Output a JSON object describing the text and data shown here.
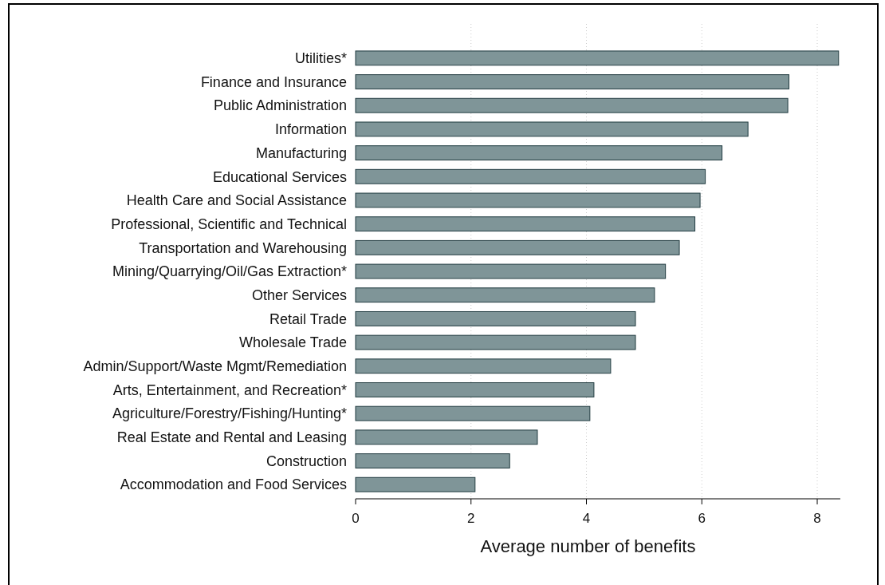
{
  "chart_data": {
    "type": "bar",
    "orientation": "horizontal",
    "xlabel": "Average number of benefits",
    "categories": [
      "Utilities*",
      "Finance and Insurance",
      "Public Administration",
      "Information",
      "Manufacturing",
      "Educational Services",
      "Health Care and Social Assistance",
      "Professional, Scientific and Technical",
      "Transportation and Warehousing",
      "Mining/Quarrying/Oil/Gas Extraction*",
      "Other Services",
      "Retail Trade",
      "Wholesale Trade",
      "Admin/Support/Waste Mgmt/Remediation",
      "Arts, Entertainment, and Recreation*",
      "Agriculture/Forestry/Fishing/Hunting*",
      "Real Estate and Rental and Leasing",
      "Construction",
      "Accommodation and Food Services"
    ],
    "values": [
      8.37,
      7.51,
      7.49,
      6.8,
      6.35,
      6.06,
      5.97,
      5.88,
      5.61,
      5.37,
      5.18,
      4.85,
      4.85,
      4.42,
      4.13,
      4.06,
      3.15,
      2.67,
      2.07
    ],
    "color": "#7f9598",
    "xlim": [
      0,
      8.4
    ],
    "xticks": [
      0,
      2,
      4,
      6,
      8
    ],
    "grid": "x"
  }
}
